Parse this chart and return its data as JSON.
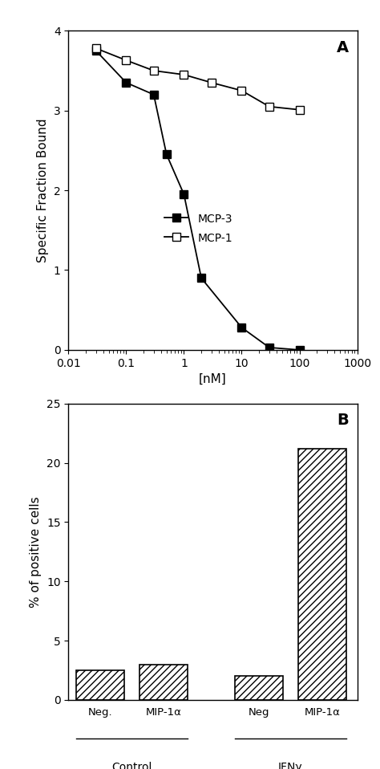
{
  "panel_A": {
    "label": "A",
    "mcp3_x": [
      0.03,
      0.1,
      0.3,
      0.5,
      1.0,
      2.0,
      10.0,
      30.0,
      100.0
    ],
    "mcp3_y": [
      3.75,
      3.35,
      3.2,
      2.45,
      1.95,
      0.9,
      0.28,
      0.03,
      0.0
    ],
    "mcp1_x": [
      0.03,
      0.1,
      0.3,
      1.0,
      3.0,
      10.0,
      30.0,
      100.0
    ],
    "mcp1_y": [
      3.78,
      3.63,
      3.5,
      3.45,
      3.35,
      3.25,
      3.05,
      3.01
    ],
    "xlabel": "[nM]",
    "ylabel": "Specific Fraction Bound",
    "xlim_log": [
      -2,
      3
    ],
    "ylim": [
      0,
      4
    ],
    "yticks": [
      0,
      1,
      2,
      3,
      4
    ],
    "xtick_labels": [
      "0.01",
      "0.1",
      "1",
      "10",
      "100",
      "1000"
    ],
    "xtick_vals": [
      0.01,
      0.1,
      1.0,
      10.0,
      100.0,
      1000.0
    ],
    "legend_mcp3": "MCP-3",
    "legend_mcp1": "MCP-1"
  },
  "panel_B": {
    "label": "B",
    "bar_labels": [
      "Neg.",
      "MIP-1α",
      "Neg",
      "MIP-1α"
    ],
    "bar_values": [
      2.5,
      3.0,
      2.0,
      21.2
    ],
    "group_labels": [
      "Control",
      "IFNγ"
    ],
    "bar_positions": [
      0.6,
      1.6,
      3.1,
      4.1
    ],
    "bar_width": 0.75,
    "ylabel": "% of positive cells",
    "ylim": [
      0,
      25
    ],
    "yticks": [
      0,
      5,
      10,
      15,
      20,
      25
    ],
    "xlim": [
      0.1,
      4.65
    ]
  }
}
